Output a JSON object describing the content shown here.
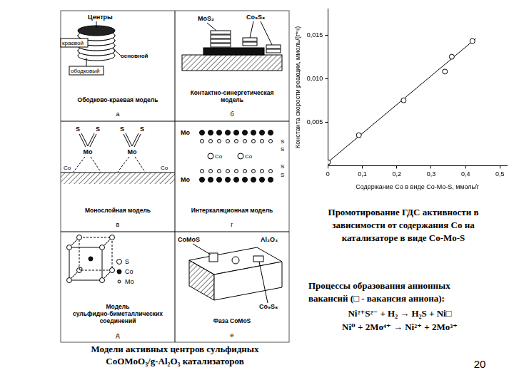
{
  "panels": [
    {
      "letter": "а",
      "caption": [
        "Ободково-краевая модель"
      ],
      "labels": [
        "Центры",
        "краевой",
        "основной",
        "ободковый"
      ]
    },
    {
      "letter": "б",
      "caption": [
        "Контактно-синергетическая",
        "модель"
      ],
      "labels": [
        "MoS₂",
        "Co₉S₈"
      ]
    },
    {
      "letter": "в",
      "caption": [
        "Монослойная модель"
      ],
      "labels": [
        "S",
        "Mo",
        "Co"
      ]
    },
    {
      "letter": "г",
      "caption": [
        "Интеркаляционная модель"
      ],
      "labels": [
        "Mo",
        "Co",
        "S"
      ]
    },
    {
      "letter": "д",
      "caption": [
        "Модель",
        "сульфидно-биметаллических",
        "соединений"
      ],
      "labels": [
        "S",
        "Co",
        "Mo"
      ]
    },
    {
      "letter": "е",
      "caption": [
        "Фаза CoMoS"
      ],
      "labels": [
        "CoMoS",
        "Al₂O₃",
        "Co₉S₈"
      ]
    }
  ],
  "panels_caption": [
    "Модели активных центров сульфидных",
    "CoOMoO₃/g-Al₂O₃ катализаторов"
  ],
  "chart_caption": [
    "Промотирование ГДС активности в",
    "зависимости от содержания Co на",
    "катализаторе в виде Co-Mo-S"
  ],
  "vacancy_text": [
    "Процессы образования анионных",
    "вакансий (□ - вакансия аниона):"
  ],
  "equations": [
    "Ni²⁺S²⁻ + H₂ → H₂S + Ni□",
    "Ni⁰ + 2Mo⁴⁺ → Ni²⁺ + 2Mo³⁺"
  ],
  "page_number": "20",
  "chart_data": {
    "type": "scatter",
    "x_label": "Содержание Co в виде Co-Mo-S, ммоль/г",
    "y_label": "Константа скорости реакции, ммоль/(г*ч)",
    "xlim": [
      0,
      0.52
    ],
    "ylim": [
      0,
      0.018
    ],
    "xticks": [
      0,
      {
        "value": 0.1,
        "label": "0,1"
      },
      {
        "value": 0.2,
        "label": "0,2"
      },
      {
        "value": 0.3,
        "label": "0,3"
      },
      {
        "value": 0.4,
        "label": "0,4"
      },
      {
        "value": 0.5,
        "label": "0,5"
      }
    ],
    "yticks": [
      {
        "value": 0.005,
        "label": "0,005"
      },
      {
        "value": 0.01,
        "label": "0,010"
      },
      {
        "value": 0.015,
        "label": "0,015"
      }
    ],
    "grid": false,
    "series": [
      {
        "type": "scatter",
        "marker": "circle",
        "color": "#000000",
        "x": [
          0,
          0.09,
          0.22,
          0.34,
          0.36,
          0.42
        ],
        "values": [
          0.0004,
          0.0035,
          0.0075,
          0.0108,
          0.0125,
          0.0143
        ]
      },
      {
        "type": "line",
        "line_style": "solid",
        "color": "#000000",
        "x": [
          0,
          0.43
        ],
        "values": [
          0.0004,
          0.0146
        ]
      }
    ]
  }
}
